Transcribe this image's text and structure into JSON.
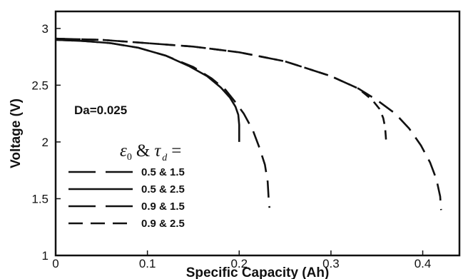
{
  "chart_data": {
    "type": "line",
    "xlabel": "Specific Capacity (Ah)",
    "ylabel": "Voltage (V)",
    "xlim": [
      0,
      0.44
    ],
    "ylim": [
      1,
      3.15
    ],
    "x_ticks": [
      "0",
      "0.1",
      "0.2",
      "0.3",
      "0.4"
    ],
    "y_ticks": [
      "1",
      "1.5",
      "2",
      "2.5",
      "3"
    ],
    "annotation": "Da=0.025",
    "legend": {
      "placement": "bottom-left",
      "title_parts": {
        "eps": "ε",
        "eps_sub": "0",
        "amp": "&",
        "tau": "τ",
        "tau_sub": "d",
        "eq": "="
      }
    },
    "series": [
      {
        "name": "0.5 & 1.5",
        "style": "long-dash",
        "points": [
          [
            0,
            2.9
          ],
          [
            0.03,
            2.89
          ],
          [
            0.06,
            2.87
          ],
          [
            0.09,
            2.83
          ],
          [
            0.12,
            2.76
          ],
          [
            0.15,
            2.66
          ],
          [
            0.17,
            2.56
          ],
          [
            0.185,
            2.46
          ],
          [
            0.195,
            2.36
          ],
          [
            0.205,
            2.25
          ],
          [
            0.215,
            2.1
          ],
          [
            0.222,
            1.95
          ],
          [
            0.228,
            1.8
          ],
          [
            0.231,
            1.65
          ],
          [
            0.232,
            1.52
          ],
          [
            0.233,
            1.42
          ]
        ]
      },
      {
        "name": "0.5 & 2.5",
        "style": "solid",
        "points": [
          [
            0,
            2.9
          ],
          [
            0.03,
            2.89
          ],
          [
            0.06,
            2.87
          ],
          [
            0.09,
            2.83
          ],
          [
            0.12,
            2.76
          ],
          [
            0.145,
            2.67
          ],
          [
            0.165,
            2.58
          ],
          [
            0.18,
            2.48
          ],
          [
            0.19,
            2.39
          ],
          [
            0.196,
            2.31
          ],
          [
            0.199,
            2.24
          ],
          [
            0.2,
            2.15
          ],
          [
            0.2,
            2.0
          ]
        ]
      },
      {
        "name": "0.9 & 1.5",
        "style": "long-dash",
        "points": [
          [
            0,
            2.91
          ],
          [
            0.05,
            2.9
          ],
          [
            0.1,
            2.87
          ],
          [
            0.15,
            2.84
          ],
          [
            0.2,
            2.79
          ],
          [
            0.25,
            2.71
          ],
          [
            0.3,
            2.58
          ],
          [
            0.33,
            2.47
          ],
          [
            0.35,
            2.37
          ],
          [
            0.37,
            2.25
          ],
          [
            0.385,
            2.12
          ],
          [
            0.398,
            1.97
          ],
          [
            0.408,
            1.82
          ],
          [
            0.415,
            1.67
          ],
          [
            0.419,
            1.52
          ],
          [
            0.42,
            1.4
          ]
        ]
      },
      {
        "name": "0.9 & 2.5",
        "style": "short-dash",
        "points": [
          [
            0,
            2.91
          ],
          [
            0.05,
            2.9
          ],
          [
            0.1,
            2.87
          ],
          [
            0.15,
            2.84
          ],
          [
            0.2,
            2.79
          ],
          [
            0.25,
            2.71
          ],
          [
            0.3,
            2.58
          ],
          [
            0.33,
            2.47
          ],
          [
            0.345,
            2.37
          ],
          [
            0.353,
            2.29
          ],
          [
            0.357,
            2.21
          ],
          [
            0.359,
            2.13
          ],
          [
            0.36,
            2.02
          ]
        ]
      }
    ]
  }
}
